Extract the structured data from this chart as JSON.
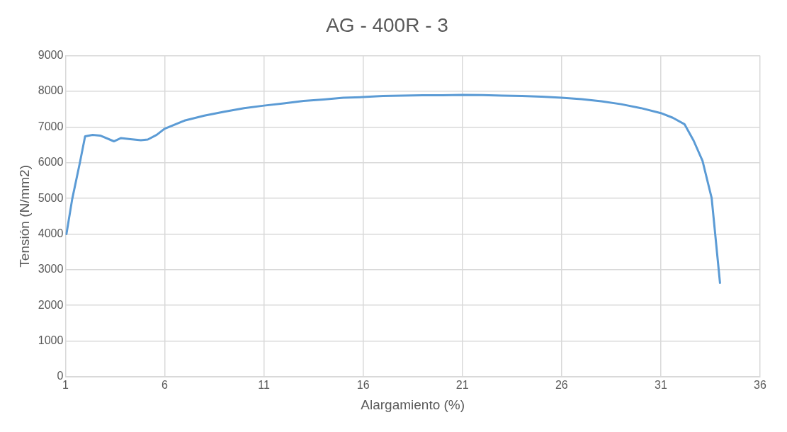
{
  "chart_data": {
    "type": "line",
    "title": "AG - 400R - 3",
    "xlabel": "Alargamiento (%)",
    "ylabel": "Tensión (N/mm2)",
    "x": [
      1.05,
      1.34,
      1.72,
      1.99,
      2.37,
      2.75,
      3.44,
      3.8,
      4.27,
      4.8,
      5.15,
      5.6,
      5.99,
      7,
      8,
      9,
      10,
      11,
      12,
      13,
      14,
      15,
      16,
      17,
      18,
      19,
      20,
      21,
      22,
      23,
      24,
      25,
      26,
      27,
      28,
      29,
      30,
      31,
      31.6,
      32.19,
      32.65,
      33.1,
      33.56,
      33.98
    ],
    "series": [
      {
        "color": "#5b9bd5",
        "values": [
          4000,
          4980,
          5980,
          6740,
          6780,
          6760,
          6600,
          6690,
          6660,
          6630,
          6650,
          6780,
          6950,
          7180,
          7320,
          7430,
          7530,
          7600,
          7660,
          7730,
          7770,
          7820,
          7840,
          7870,
          7880,
          7890,
          7890,
          7900,
          7895,
          7880,
          7870,
          7850,
          7820,
          7780,
          7720,
          7640,
          7530,
          7390,
          7260,
          7080,
          6620,
          6050,
          5010,
          2630
        ]
      }
    ],
    "xlim": [
      1,
      36
    ],
    "xticks": [
      1,
      6,
      11,
      16,
      21,
      26,
      31,
      36
    ],
    "ylim": [
      0,
      9000
    ],
    "yticks": [
      0,
      1000,
      2000,
      3000,
      4000,
      5000,
      6000,
      7000,
      8000,
      9000
    ],
    "grid": true,
    "legend": false,
    "marker": "none",
    "line_style": "solid"
  }
}
